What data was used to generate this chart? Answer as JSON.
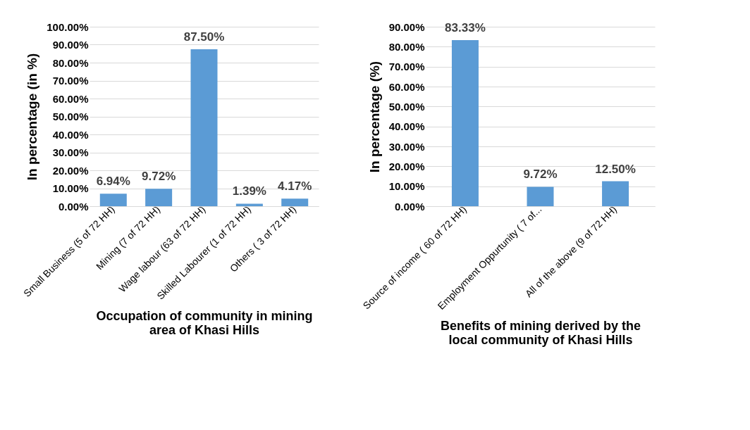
{
  "chart_data": [
    {
      "type": "bar",
      "xlabel": "Occupation of community in mining area of Khasi Hills",
      "ylabel": "In percentage (in %)",
      "categories": [
        "Small Business (5 of 72 HH)",
        "Mining (7 of 72 HH)",
        "Wage labour (63 of 72 HH)",
        "Skilled Labourer (1 of 72 HH)",
        "Others ( 3 of 72 HH)"
      ],
      "values": [
        6.94,
        9.72,
        87.5,
        1.39,
        4.17
      ],
      "value_labels": [
        "6.94%",
        "9.72%",
        "87.50%",
        "1.39%",
        "4.17%"
      ],
      "color": "#5b9bd5",
      "ylim": [
        0,
        100
      ],
      "yticks": [
        {
          "value": 0,
          "label": "0.00%"
        },
        {
          "value": 10,
          "label": "10.00%"
        },
        {
          "value": 20,
          "label": "20.00%"
        },
        {
          "value": 30,
          "label": "30.00%"
        },
        {
          "value": 40,
          "label": "40.00%"
        },
        {
          "value": 50,
          "label": "50.00%"
        },
        {
          "value": 60,
          "label": "60.00%"
        },
        {
          "value": 70,
          "label": "70.00%"
        },
        {
          "value": 80,
          "label": "80.00%"
        },
        {
          "value": 90,
          "label": "90.00%"
        },
        {
          "value": 100,
          "label": "100.00%"
        }
      ],
      "grid": true
    },
    {
      "type": "bar",
      "xlabel": "Benefits of mining derived by the local community of Khasi Hills",
      "ylabel": "In percentage (%)",
      "categories": [
        "Source of income ( 60 of 72 HH)",
        "Employment Oppurtunity ( 7 of...",
        "All of the above (9 of 72 HH)"
      ],
      "values": [
        83.33,
        9.72,
        12.5
      ],
      "value_labels": [
        "83.33%",
        "9.72%",
        "12.50%"
      ],
      "color": "#5b9bd5",
      "ylim": [
        0,
        90
      ],
      "yticks": [
        {
          "value": 0,
          "label": "0.00%"
        },
        {
          "value": 10,
          "label": "10.00%"
        },
        {
          "value": 20,
          "label": "20.00%"
        },
        {
          "value": 30,
          "label": "30.00%"
        },
        {
          "value": 40,
          "label": "40.00%"
        },
        {
          "value": 50,
          "label": "50.00%"
        },
        {
          "value": 60,
          "label": "60.00%"
        },
        {
          "value": 70,
          "label": "70.00%"
        },
        {
          "value": 80,
          "label": "80.00%"
        },
        {
          "value": 90,
          "label": "90.00%"
        }
      ],
      "grid": true
    }
  ]
}
